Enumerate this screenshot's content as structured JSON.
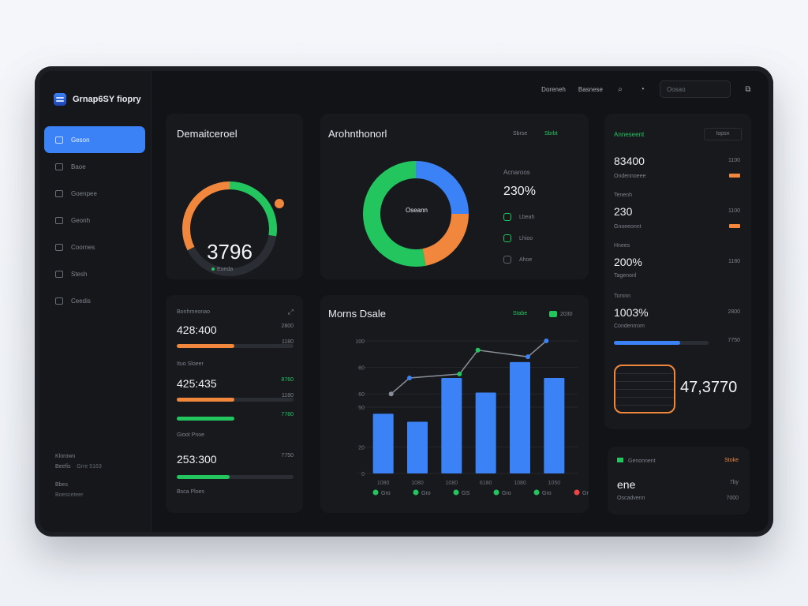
{
  "brand": {
    "name": "Grnap6SY fiopry"
  },
  "sidebar": {
    "items": [
      {
        "label": "Geson",
        "icon": "square-icon",
        "active": true
      },
      {
        "label": "Baoe",
        "icon": "grid-icon",
        "active": false
      },
      {
        "label": "Goenpee",
        "icon": "user-icon",
        "active": false
      },
      {
        "label": "Geonh",
        "icon": "chart-icon",
        "active": false
      },
      {
        "label": "Coornes",
        "icon": "chat-icon",
        "active": false
      },
      {
        "label": "Stesh",
        "icon": "folder-icon",
        "active": false
      },
      {
        "label": "Ceedis",
        "icon": "settings-icon",
        "active": false
      }
    ],
    "footer": {
      "line1": "Klorown",
      "line2a": "Beefis",
      "line2b": "Grre 5163",
      "line3": "Bbes",
      "line4": "Boesceteer"
    }
  },
  "topbar": {
    "link1": "Doreneh",
    "link2": "Basnese",
    "search_placeholder": "Oosao"
  },
  "gauge": {
    "title": "Demaitceroel",
    "value": "3796",
    "sublabel": "Eoeda",
    "progress": 0.42,
    "colors": {
      "orange": "#f0873c",
      "green": "#22c55e",
      "track": "#2a2d33"
    }
  },
  "donut": {
    "title": "Arohnthonorl",
    "center": "Oseann",
    "header_a": "Sbrse",
    "header_b": "Sbrbt",
    "stat_label": "Acnaroos",
    "stat_value": "230%",
    "slices": [
      {
        "label": "Lbeah",
        "value": 0.25,
        "color": "#3b82f6"
      },
      {
        "label": "Lhioo",
        "value": 0.22,
        "color": "#f0873c"
      },
      {
        "label": "Ahoe",
        "value": 0.53,
        "color": "#22c55e"
      }
    ]
  },
  "metrics": {
    "rows": [
      {
        "label": "Bonhrneonao",
        "value": "428:400",
        "right": "2800",
        "end": "1180",
        "pct": 0.49,
        "color": "#f0873c"
      },
      {
        "label": "Ituo Sloeer",
        "value": "425:435",
        "right": "8760",
        "end": "1180",
        "pct": 0.49,
        "color": "#f0873c"
      },
      {
        "label": "Gioot Pnoe",
        "value": "253:300",
        "right": "7750",
        "end": "7780",
        "pct": 0.45,
        "color": "#22c55e"
      }
    ],
    "extra_label": "Bsca Ploes",
    "extra_bar_pct": 0.49,
    "extra_bar_color": "#22c55e"
  },
  "chart_data": {
    "type": "bar",
    "title": "Morns Dsale",
    "legend_a": "Stabe",
    "legend_b": "2030",
    "ylim": [
      0,
      100
    ],
    "yticks": [
      "0",
      "20",
      "50",
      "60",
      "80",
      "100"
    ],
    "categories": [
      "1080",
      "1080",
      "1080",
      "6180",
      "1080",
      "1050"
    ],
    "series": [
      {
        "type": "bar",
        "values": [
          45,
          39,
          72,
          61,
          84,
          72
        ],
        "color": "#3b82f6"
      },
      {
        "type": "line",
        "values": [
          60,
          72,
          75,
          93,
          88,
          100
        ],
        "color": "#7d828b"
      }
    ],
    "bottom_legend": [
      {
        "label": "Gro",
        "color": "#22c55e"
      },
      {
        "label": "Gro",
        "color": "#22c55e"
      },
      {
        "label": "GS",
        "color": "#22c55e"
      },
      {
        "label": "Gro",
        "color": "#22c55e"
      },
      {
        "label": "Gro",
        "color": "#22c55e"
      },
      {
        "label": "Gro",
        "color": "#ef4444"
      }
    ]
  },
  "right_panel": {
    "title": "Anneseent",
    "button": "Iopsn",
    "rows": [
      {
        "value": "83400",
        "label": "Ondennoeee",
        "right": "1100"
      },
      {
        "value": "230",
        "label": "Gnoeeonnt",
        "right": "1100"
      },
      {
        "value": "200%",
        "label": "Tagenonl",
        "right": "1180"
      },
      {
        "value": "1003%",
        "label": "Condenrrom",
        "right": "2800"
      }
    ],
    "labels_small": [
      "Tenenh",
      "Hnees",
      "Tomnn"
    ],
    "bar_pct": 0.7,
    "bar_end": "7750",
    "big_value": "47,3770"
  },
  "bottom_right": {
    "title": "Genonnent",
    "tag": "Stoke",
    "value": "ene",
    "label": "Oscadvenn",
    "right1": "7by",
    "right2": "7000"
  }
}
